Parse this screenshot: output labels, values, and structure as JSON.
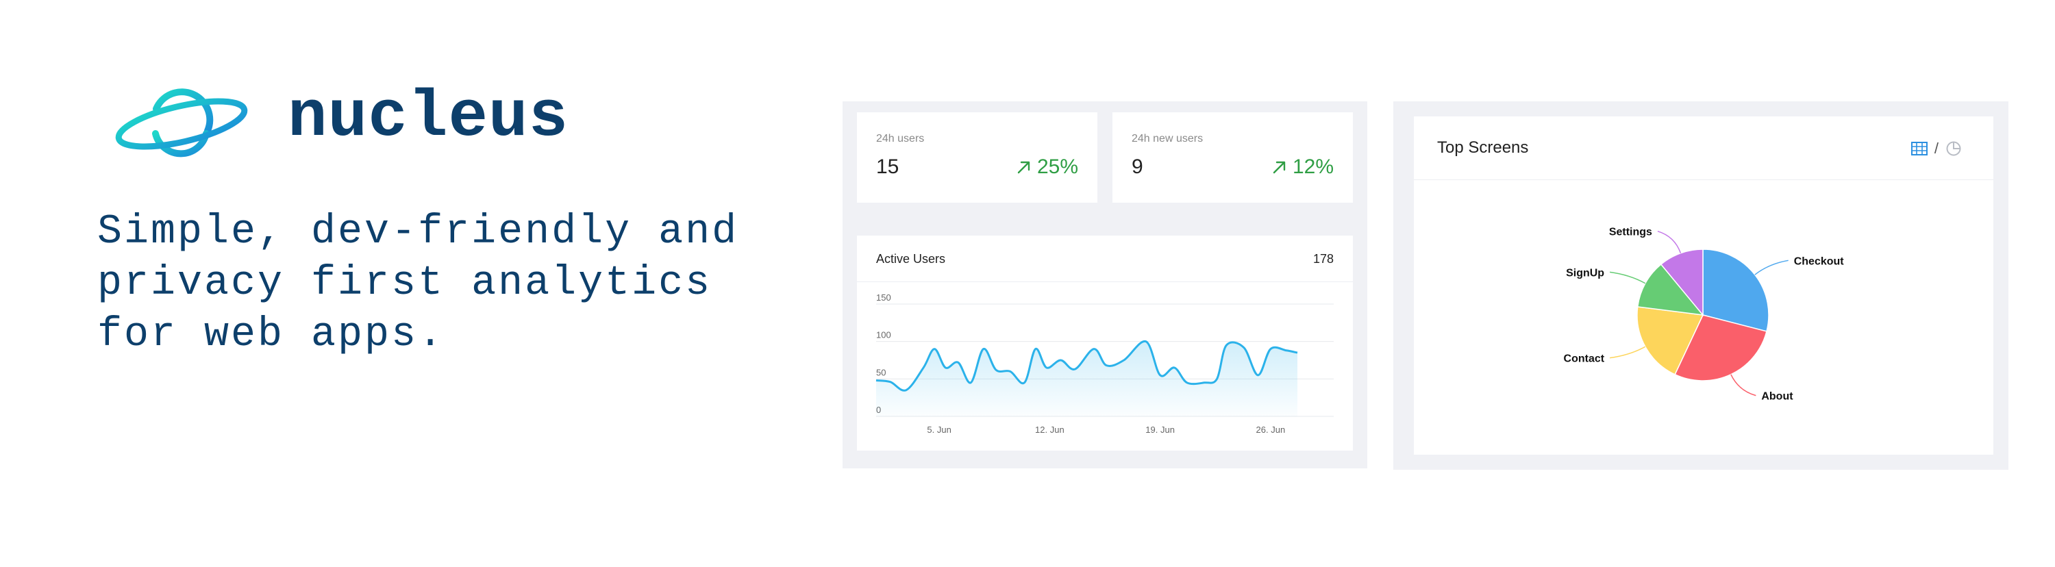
{
  "brand": {
    "name": "nucleus",
    "tagline": "Simple, dev-friendly and privacy first analytics for web apps.",
    "logo_icon": "planet-icon"
  },
  "colors": {
    "brand": "#0d3f6b",
    "positive": "#2f9e44",
    "line": "#2bb2ea",
    "panel_bg": "#f0f1f5"
  },
  "stats": [
    {
      "label": "24h users",
      "value": "15",
      "change": "25%",
      "trend_icon": "arrow-up-right-icon"
    },
    {
      "label": "24h new users",
      "value": "9",
      "change": "12%",
      "trend_icon": "arrow-up-right-icon"
    }
  ],
  "active_users": {
    "title": "Active Users",
    "count": "178",
    "chart_data": {
      "type": "area",
      "y_ticks": [
        "0",
        "50",
        "100",
        "150"
      ],
      "x_ticks": [
        {
          "label": "5. Jun",
          "day": 5
        },
        {
          "label": "12. Jun",
          "day": 12
        },
        {
          "label": "19. Jun",
          "day": 19
        },
        {
          "label": "26. Jun",
          "day": 26
        }
      ],
      "ylim": [
        0,
        150
      ],
      "xlim": [
        1,
        30
      ],
      "values": [
        {
          "day": 1.0,
          "users": 48
        },
        {
          "day": 1.9,
          "users": 46
        },
        {
          "day": 2.9,
          "users": 35
        },
        {
          "day": 4.0,
          "users": 65
        },
        {
          "day": 4.7,
          "users": 90
        },
        {
          "day": 5.4,
          "users": 65
        },
        {
          "day": 6.2,
          "users": 72
        },
        {
          "day": 7.0,
          "users": 45
        },
        {
          "day": 7.8,
          "users": 90
        },
        {
          "day": 8.6,
          "users": 62
        },
        {
          "day": 9.5,
          "users": 60
        },
        {
          "day": 10.4,
          "users": 45
        },
        {
          "day": 11.1,
          "users": 90
        },
        {
          "day": 11.8,
          "users": 65
        },
        {
          "day": 12.7,
          "users": 75
        },
        {
          "day": 13.6,
          "users": 63
        },
        {
          "day": 14.8,
          "users": 90
        },
        {
          "day": 15.6,
          "users": 68
        },
        {
          "day": 16.7,
          "users": 75
        },
        {
          "day": 18.1,
          "users": 100
        },
        {
          "day": 19.0,
          "users": 55
        },
        {
          "day": 19.9,
          "users": 65
        },
        {
          "day": 20.7,
          "users": 45
        },
        {
          "day": 21.8,
          "users": 45
        },
        {
          "day": 22.6,
          "users": 50
        },
        {
          "day": 23.2,
          "users": 95
        },
        {
          "day": 24.3,
          "users": 92
        },
        {
          "day": 25.2,
          "users": 55
        },
        {
          "day": 26.0,
          "users": 90
        },
        {
          "day": 27.0,
          "users": 88
        },
        {
          "day": 27.7,
          "users": 85
        }
      ]
    }
  },
  "top_screens": {
    "title": "Top Screens",
    "table_icon": "table-icon",
    "pie_icon": "pie-chart-icon",
    "separator": "/",
    "chart_data": {
      "type": "pie",
      "slices": [
        {
          "label": "Checkout",
          "value": 29,
          "color": "#4fa8ee"
        },
        {
          "label": "About",
          "value": 28,
          "color": "#fa5f6a"
        },
        {
          "label": "Contact",
          "value": 20,
          "color": "#fdd55b"
        },
        {
          "label": "SignUp",
          "value": 12,
          "color": "#66cc74"
        },
        {
          "label": "Settings",
          "value": 11,
          "color": "#c378e8"
        }
      ]
    }
  }
}
